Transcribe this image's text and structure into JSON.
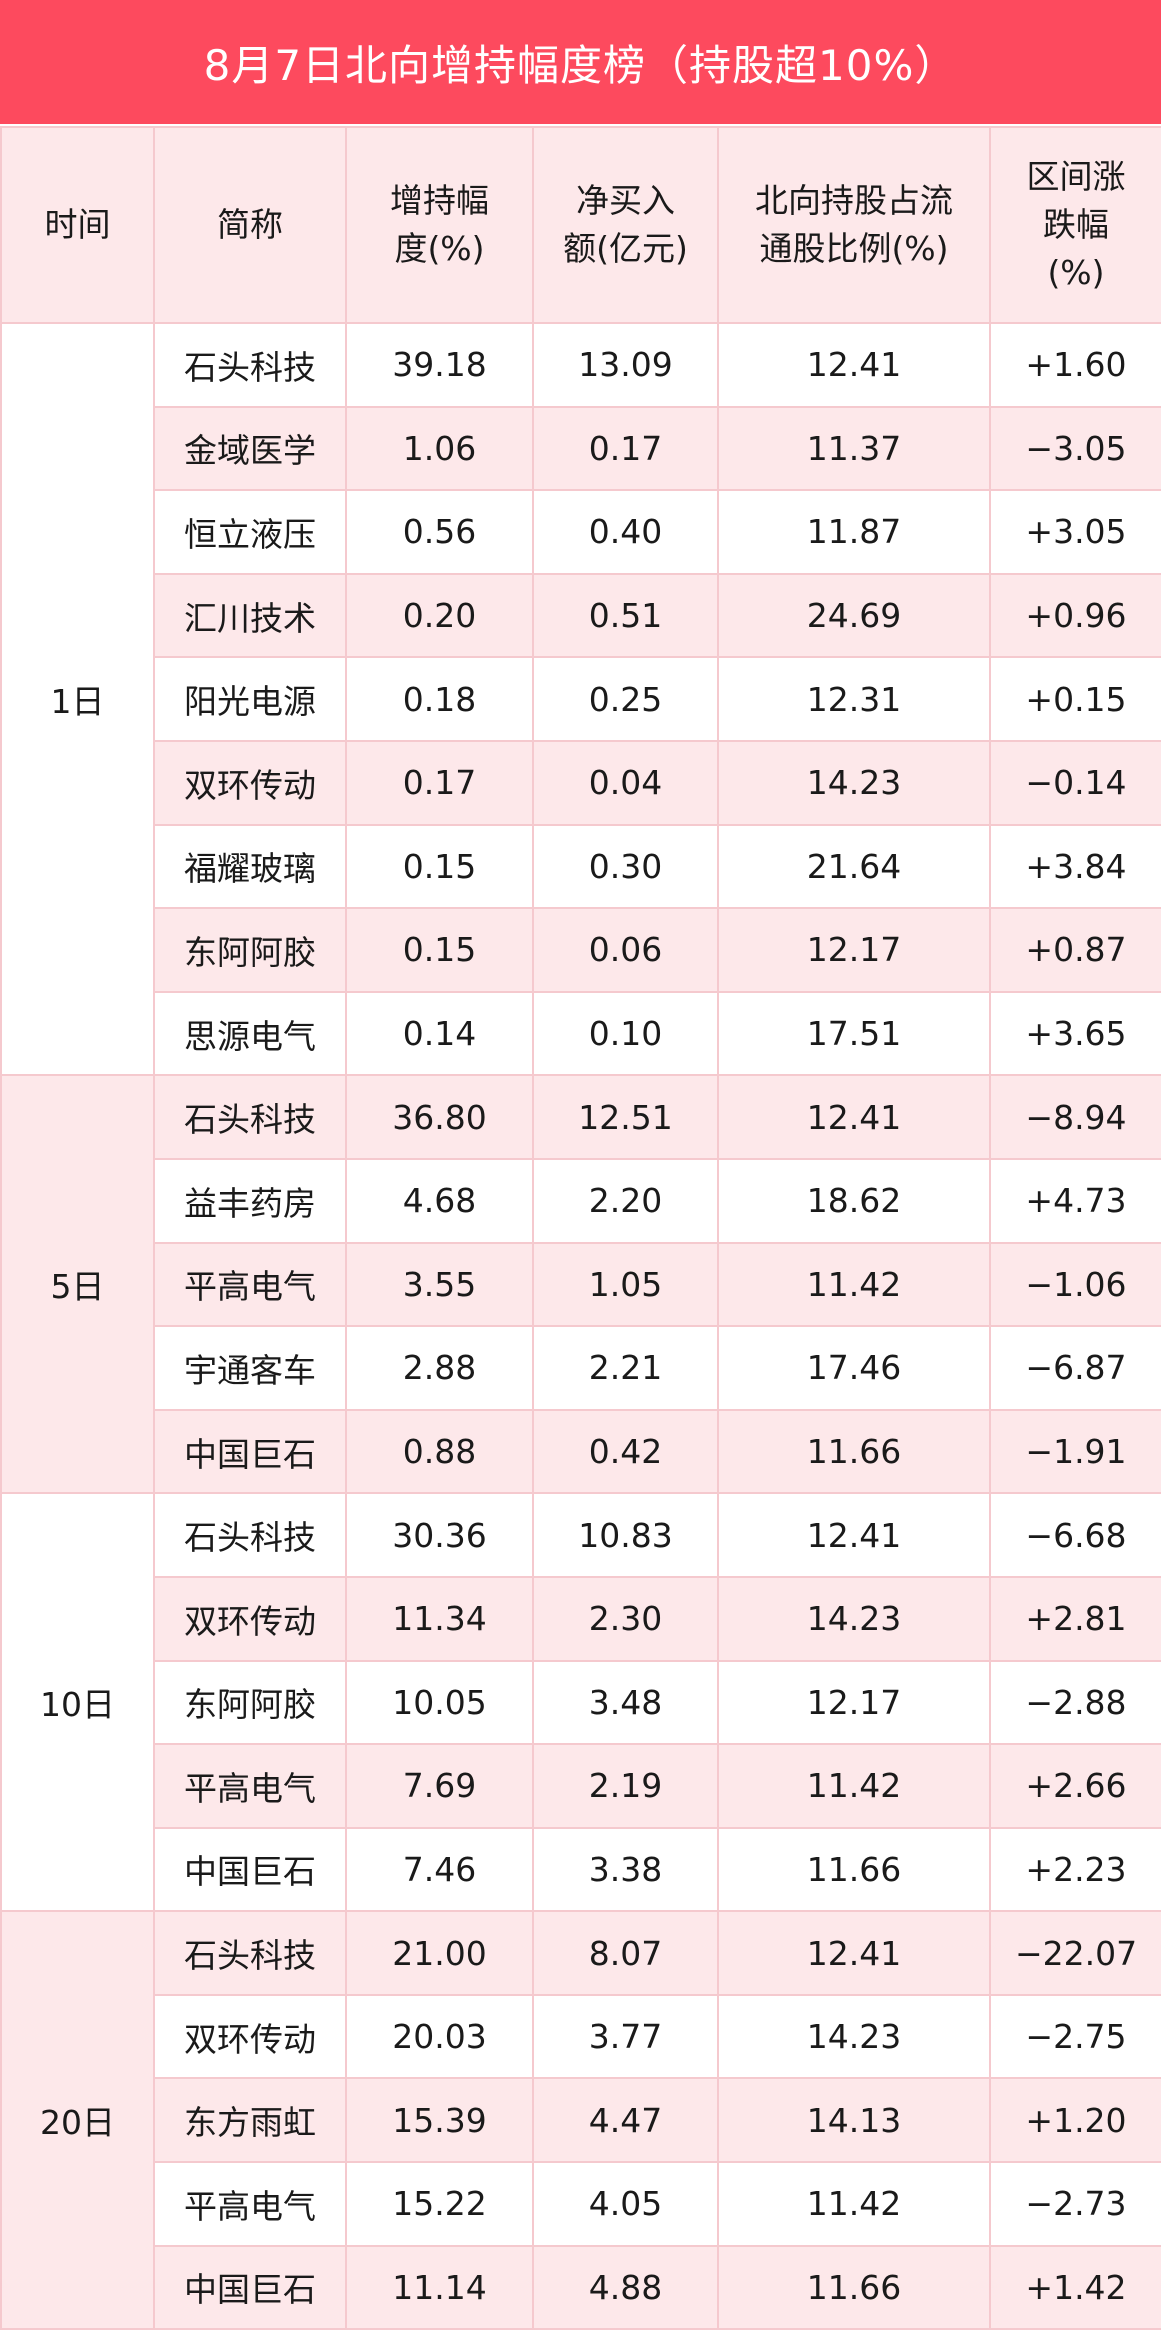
{
  "title": "8月7日北向增持幅度榜（持股超10%）",
  "colors": {
    "title_bg": "#fd4a5e",
    "row_alt": "#fde8ea",
    "border": "#f5c9ce"
  },
  "headers": [
    "时间",
    "简称",
    "增持幅\n度(%)",
    "净买入\n额(亿元)",
    "北向持股占流\n通股比例(%)",
    "区间涨\n跌幅\n(%)"
  ],
  "groups": [
    {
      "period": "1日",
      "rows": [
        [
          "石头科技",
          "39.18",
          "13.09",
          "12.41",
          "+1.60"
        ],
        [
          "金域医学",
          "1.06",
          "0.17",
          "11.37",
          "−3.05"
        ],
        [
          "恒立液压",
          "0.56",
          "0.40",
          "11.87",
          "+3.05"
        ],
        [
          "汇川技术",
          "0.20",
          "0.51",
          "24.69",
          "+0.96"
        ],
        [
          "阳光电源",
          "0.18",
          "0.25",
          "12.31",
          "+0.15"
        ],
        [
          "双环传动",
          "0.17",
          "0.04",
          "14.23",
          "−0.14"
        ],
        [
          "福耀玻璃",
          "0.15",
          "0.30",
          "21.64",
          "+3.84"
        ],
        [
          "东阿阿胶",
          "0.15",
          "0.06",
          "12.17",
          "+0.87"
        ],
        [
          "思源电气",
          "0.14",
          "0.10",
          "17.51",
          "+3.65"
        ]
      ]
    },
    {
      "period": "5日",
      "rows": [
        [
          "石头科技",
          "36.80",
          "12.51",
          "12.41",
          "−8.94"
        ],
        [
          "益丰药房",
          "4.68",
          "2.20",
          "18.62",
          "+4.73"
        ],
        [
          "平高电气",
          "3.55",
          "1.05",
          "11.42",
          "−1.06"
        ],
        [
          "宇通客车",
          "2.88",
          "2.21",
          "17.46",
          "−6.87"
        ],
        [
          "中国巨石",
          "0.88",
          "0.42",
          "11.66",
          "−1.91"
        ]
      ]
    },
    {
      "period": "10日",
      "rows": [
        [
          "石头科技",
          "30.36",
          "10.83",
          "12.41",
          "−6.68"
        ],
        [
          "双环传动",
          "11.34",
          "2.30",
          "14.23",
          "+2.81"
        ],
        [
          "东阿阿胶",
          "10.05",
          "3.48",
          "12.17",
          "−2.88"
        ],
        [
          "平高电气",
          "7.69",
          "2.19",
          "11.42",
          "+2.66"
        ],
        [
          "中国巨石",
          "7.46",
          "3.38",
          "11.66",
          "+2.23"
        ]
      ]
    },
    {
      "period": "20日",
      "rows": [
        [
          "石头科技",
          "21.00",
          "8.07",
          "12.41",
          "−22.07"
        ],
        [
          "双环传动",
          "20.03",
          "3.77",
          "14.23",
          "−2.75"
        ],
        [
          "东方雨虹",
          "15.39",
          "4.47",
          "14.13",
          "+1.20"
        ],
        [
          "平高电气",
          "15.22",
          "4.05",
          "11.42",
          "−2.73"
        ],
        [
          "中国巨石",
          "11.14",
          "4.88",
          "11.66",
          "+1.42"
        ]
      ]
    }
  ]
}
